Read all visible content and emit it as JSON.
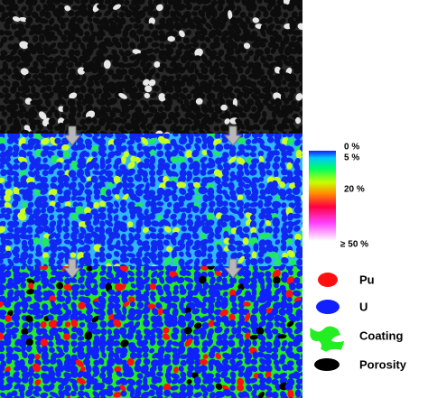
{
  "colorbar": {
    "labels": [
      "0 %",
      "5 %",
      "20 %",
      "≥ 50 %"
    ]
  },
  "legend": {
    "items": [
      "Pu",
      "U",
      "Coating",
      "Porosity"
    ]
  }
}
